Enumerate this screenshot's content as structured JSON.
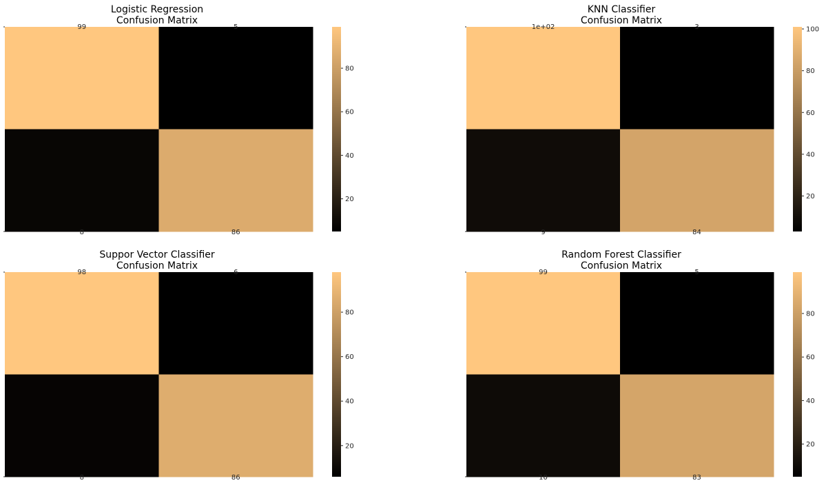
{
  "colormap": {
    "name": "copper",
    "stops": [
      "#000000",
      "#ffc77f"
    ]
  },
  "chart_data": [
    {
      "type": "heatmap",
      "title_lines": [
        "Logistic Regression",
        "Confusion Matrix"
      ],
      "matrix": [
        [
          99,
          5
        ],
        [
          8,
          86
        ]
      ],
      "annotations": [
        [
          "99",
          "5"
        ],
        [
          "8",
          "86"
        ]
      ],
      "vmin": 5,
      "vmax": 99,
      "colorbar_ticks": [
        20,
        40,
        60,
        80
      ]
    },
    {
      "type": "heatmap",
      "title_lines": [
        "KNN Classifier",
        "Confusion Matrix"
      ],
      "matrix": [
        [
          101,
          3
        ],
        [
          9,
          84
        ]
      ],
      "annotations": [
        [
          "1e+02",
          "3"
        ],
        [
          "9",
          "84"
        ]
      ],
      "vmin": 3,
      "vmax": 101,
      "colorbar_ticks": [
        20,
        40,
        60,
        80,
        100
      ]
    },
    {
      "type": "heatmap",
      "title_lines": [
        "Suppor Vector Classifier",
        "Confusion Matrix"
      ],
      "matrix": [
        [
          98,
          6
        ],
        [
          8,
          86
        ]
      ],
      "annotations": [
        [
          "98",
          "6"
        ],
        [
          "8",
          "86"
        ]
      ],
      "vmin": 6,
      "vmax": 98,
      "colorbar_ticks": [
        20,
        40,
        60,
        80
      ]
    },
    {
      "type": "heatmap",
      "title_lines": [
        "Random Forest Classifier",
        "Confusion Matrix"
      ],
      "matrix": [
        [
          99,
          5
        ],
        [
          10,
          83
        ]
      ],
      "annotations": [
        [
          "99",
          "5"
        ],
        [
          "10",
          "83"
        ]
      ],
      "vmin": 5,
      "vmax": 99,
      "colorbar_ticks": [
        20,
        40,
        60,
        80
      ]
    }
  ]
}
